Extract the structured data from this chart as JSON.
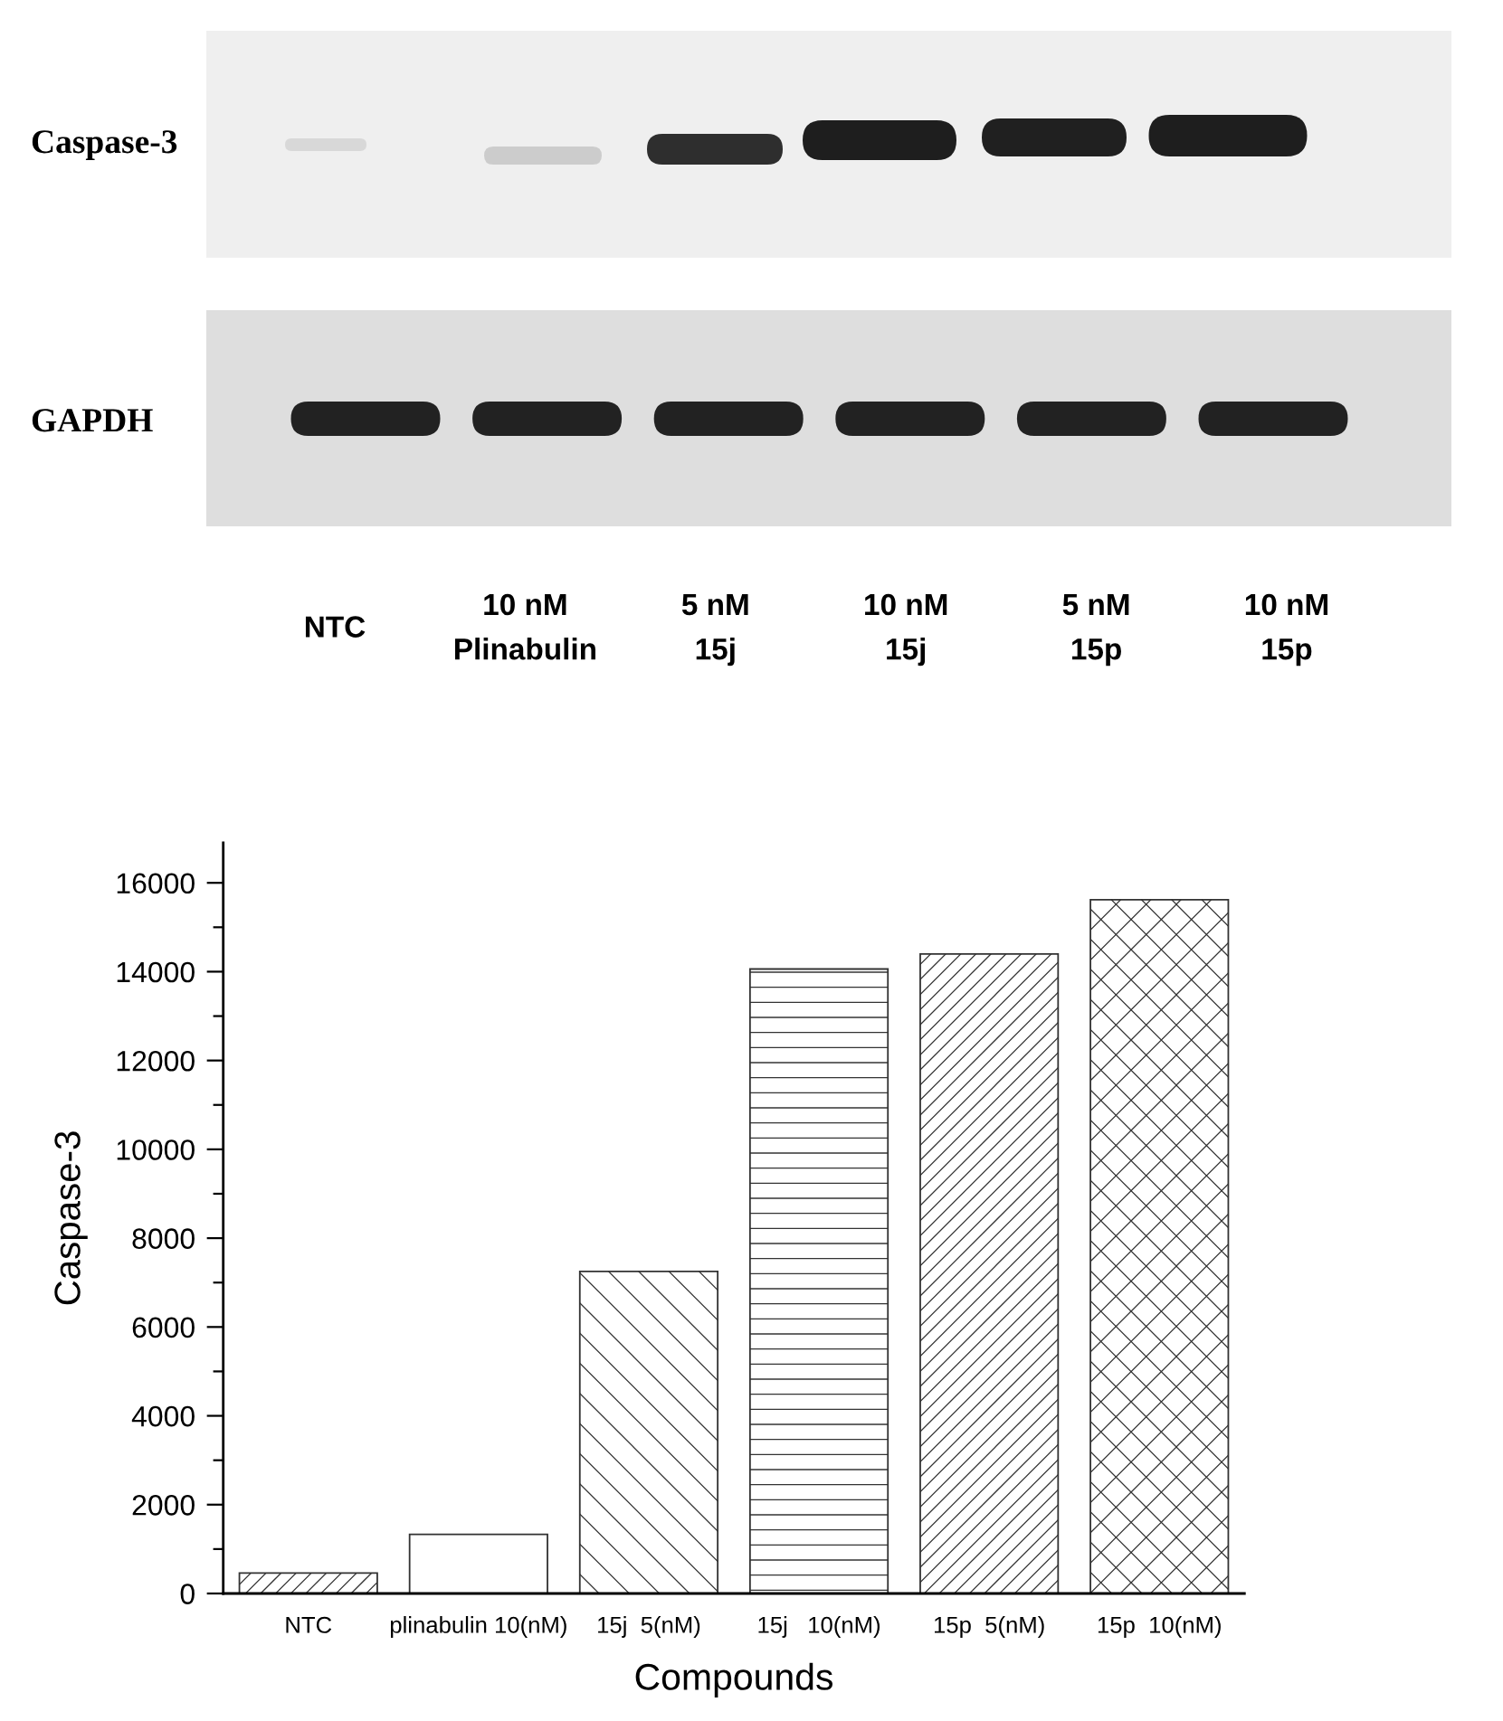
{
  "chart_data": [
    {
      "type": "other",
      "y_categories": [
        "Caspase-3",
        "GAPDH"
      ],
      "categories": [
        "NTC",
        "10 nM\nPlinabulin",
        "5 nM\n15j",
        "10 nM\n15j",
        "5 nM\n15p",
        "10 nM\n15p"
      ]
    },
    {
      "type": "bar",
      "categories": [
        "NTC",
        "plinabulin 10(nM)",
        "15j  5(nM)",
        "15j   10(nM)",
        "15p  5(nM)",
        "15p  10(nM)"
      ],
      "values": [
        460,
        1330,
        7250,
        14060,
        14400,
        15620
      ],
      "color": "#333333",
      "xlabel": "Compounds",
      "ylabel": "Caspase-3",
      "ylim": [
        0,
        16900
      ],
      "yticks": [
        0,
        {
          "value": 1000,
          "label": null
        },
        2000,
        {
          "value": 3000,
          "label": null
        },
        4000,
        {
          "value": 5000,
          "label": null
        },
        6000,
        {
          "value": 7000,
          "label": null
        },
        8000,
        {
          "value": 9000,
          "label": null
        },
        10000,
        {
          "value": 11000,
          "label": null
        },
        12000,
        {
          "value": 13000,
          "label": null
        },
        14000,
        {
          "value": 15000,
          "label": null
        },
        16000
      ]
    }
  ]
}
